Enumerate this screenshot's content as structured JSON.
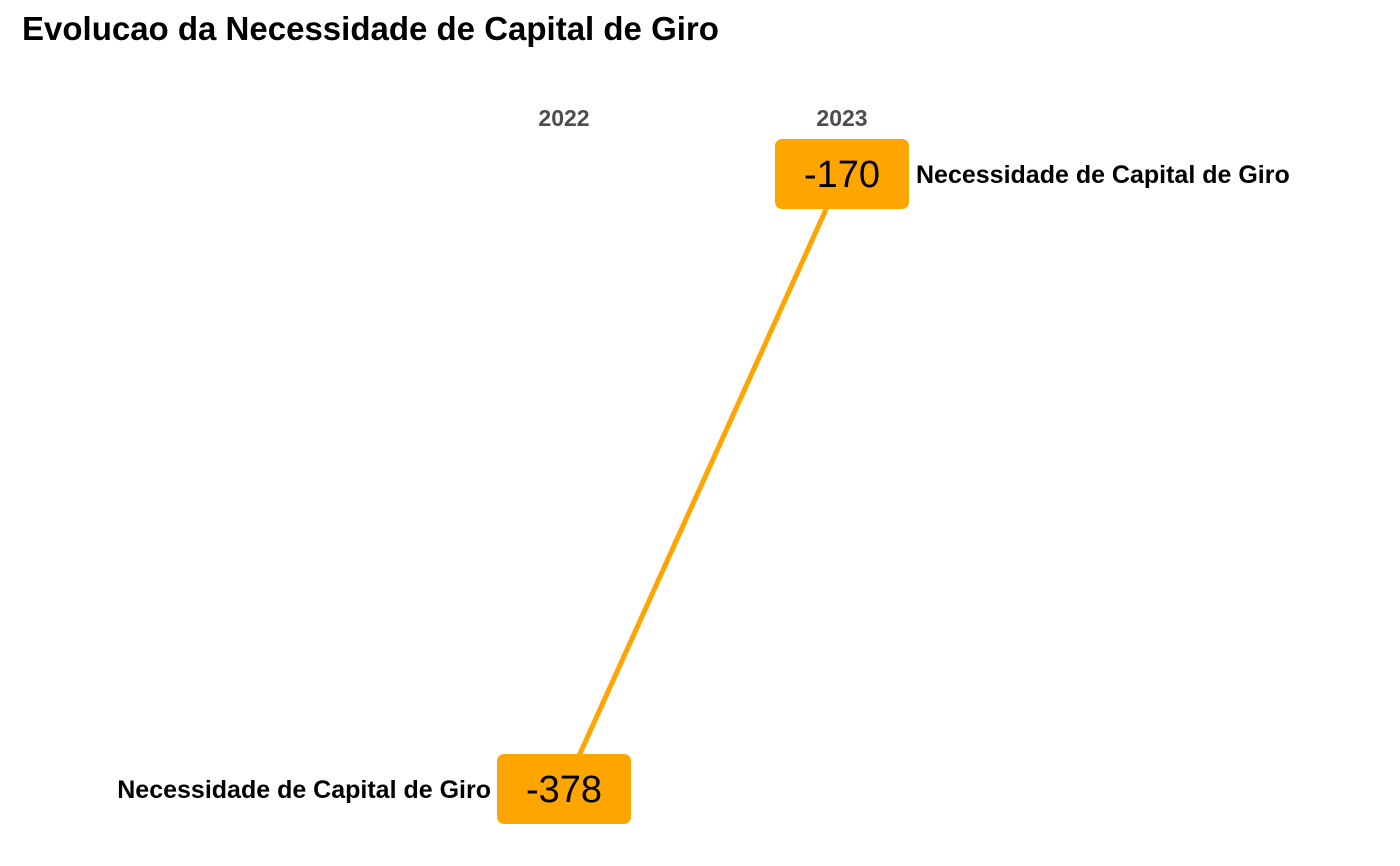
{
  "title": "Evolucao da Necessidade de Capital de Giro",
  "colors": {
    "line": "#FFA500",
    "label_fill": "#FFA500",
    "year_text": "#4D4D4D",
    "text": "#000000"
  },
  "chart_data": {
    "type": "line",
    "title": "Evolucao da Necessidade de Capital de Giro",
    "xlabel": "",
    "ylabel": "",
    "categories": [
      "2022",
      "2023"
    ],
    "series": [
      {
        "name": "Necessidade de Capital de Giro",
        "values": [
          -378,
          -170
        ],
        "labels": [
          "-378",
          "-170"
        ]
      }
    ],
    "grid": false,
    "legend": "none"
  }
}
